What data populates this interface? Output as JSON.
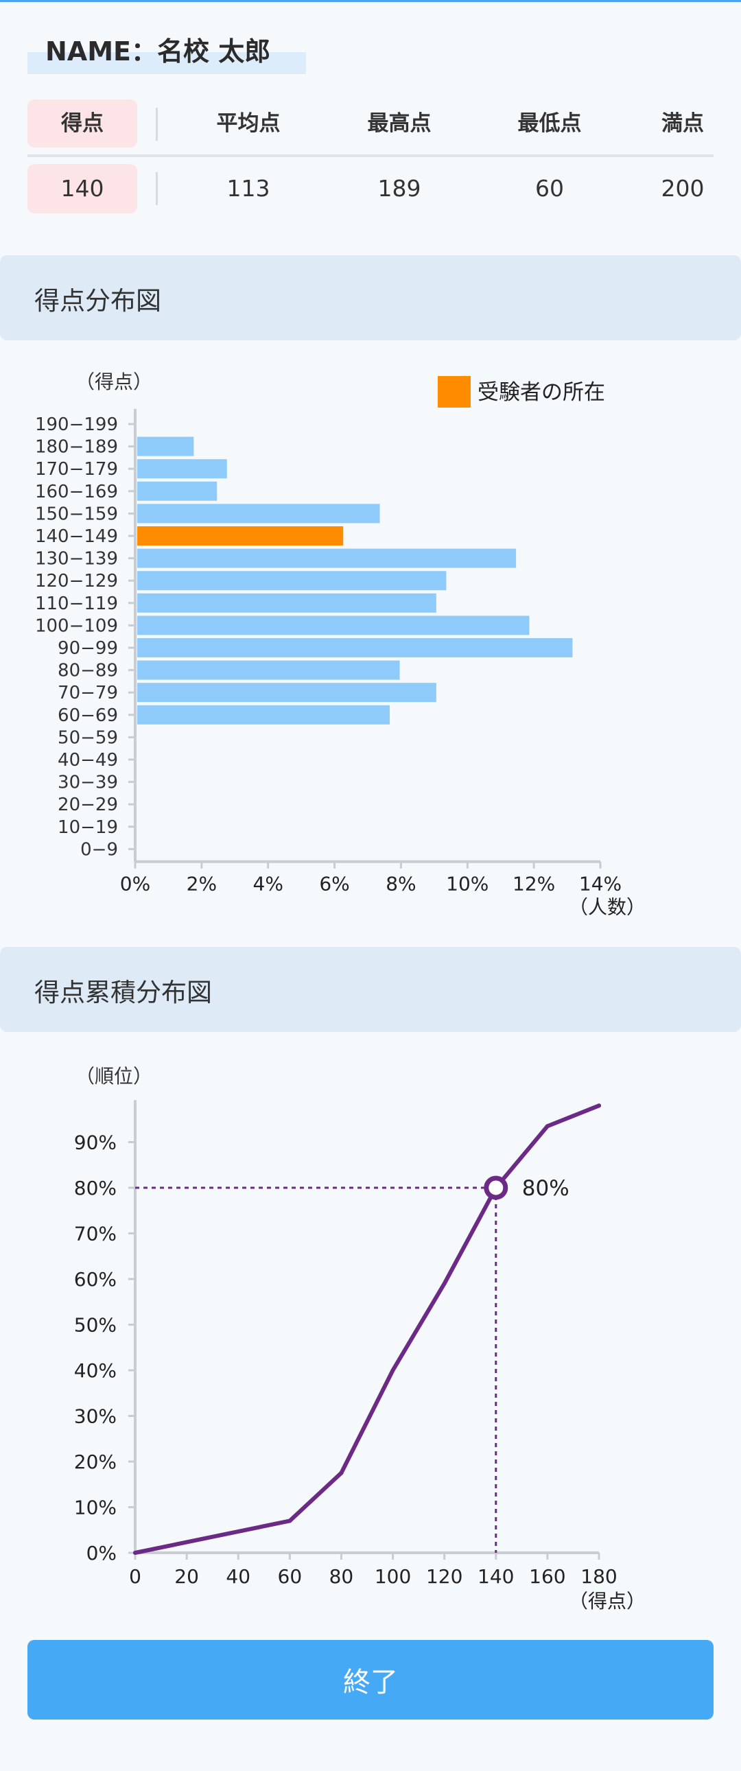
{
  "header": {
    "name_label": "NAME：名校 太郎"
  },
  "score_table": {
    "columns": [
      {
        "label": "得点",
        "value": "140",
        "highlight": true
      },
      {
        "label": "平均点",
        "value": "113"
      },
      {
        "label": "最高点",
        "value": "189"
      },
      {
        "label": "最低点",
        "value": "60"
      },
      {
        "label": "満点",
        "value": "200"
      }
    ]
  },
  "distribution_section": {
    "title": "得点分布図"
  },
  "cumulative_section": {
    "title": "得点累積分布図"
  },
  "footer": {
    "end_button_label": "終了"
  },
  "colors": {
    "bar": "#8ecbfa",
    "highlight_bar": "#ff8c00",
    "line": "#6b2a86",
    "accent": "#45a9f5",
    "mine_bg": "#fde4e7"
  },
  "chart_data": [
    {
      "type": "bar",
      "orientation": "horizontal",
      "title": "得点分布図",
      "ylabel": "（得点）",
      "xlabel": "（人数）",
      "legend": {
        "label": "受験者の所在",
        "color": "#ff8c00",
        "position": "top-right"
      },
      "categories": [
        "190−199",
        "180−189",
        "170−179",
        "160−169",
        "150−159",
        "140−149",
        "130−139",
        "120−129",
        "110−119",
        "100−109",
        "90−99",
        "80−89",
        "70−79",
        "60−69",
        "50−59",
        "40−49",
        "30−39",
        "20−29",
        "10−19",
        "0−9"
      ],
      "values": [
        0,
        1.7,
        2.7,
        2.4,
        7.3,
        6.2,
        11.4,
        9.3,
        9.0,
        11.8,
        13.1,
        7.9,
        9.0,
        7.6,
        0,
        0,
        0,
        0,
        0,
        0
      ],
      "highlight_index": 5,
      "xlim": [
        0,
        14
      ],
      "xticks": [
        "0%",
        "2%",
        "4%",
        "6%",
        "8%",
        "10%",
        "12%",
        "14%"
      ],
      "grid": false
    },
    {
      "type": "line",
      "title": "得点累積分布図",
      "ylabel": "（順位）",
      "xlabel": "（得点）",
      "x": [
        0,
        60,
        80,
        100,
        120,
        140,
        160,
        180
      ],
      "y": [
        0,
        7,
        17.5,
        40,
        59,
        80,
        93.5,
        98
      ],
      "xlim": [
        0,
        180
      ],
      "ylim": [
        0,
        98
      ],
      "xticks": [
        "0",
        "20",
        "40",
        "60",
        "80",
        "100",
        "120",
        "140",
        "160",
        "180"
      ],
      "yticks": [
        "0%",
        "10%",
        "20%",
        "30%",
        "40%",
        "50%",
        "60%",
        "70%",
        "80%",
        "90%"
      ],
      "marker": {
        "x": 140,
        "y": 80,
        "label": "80%"
      },
      "grid": false
    }
  ]
}
